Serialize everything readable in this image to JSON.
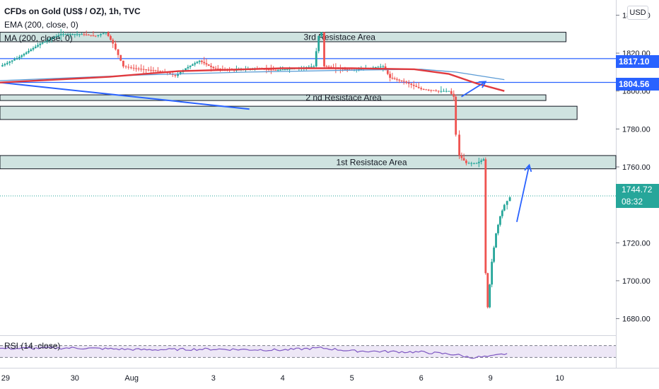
{
  "header": {
    "title": "CFDs on Gold (US$ / OZ), 1h, TVC",
    "ema_label": "EMA (200, close, 0)",
    "ma_label": "MA (200, close, 0)",
    "currency": "USD"
  },
  "rsi": {
    "label": "RSI (14, close)",
    "upper": 70,
    "lower": 30
  },
  "price_tags": [
    {
      "value": "1817.10",
      "color": "#2962ff"
    },
    {
      "value": "1804.56",
      "color": "#2962ff"
    }
  ],
  "current": {
    "price": "1744.72",
    "countdown": "08:32",
    "color": "#26a69a"
  },
  "colors": {
    "up": "#26a69a",
    "down": "#ef5350",
    "ema": "#e0393e",
    "ma": "#5b9bd5",
    "zone_fill": "#cfe3e0",
    "trend": "#2962ff",
    "rsi": "#7e57c2"
  },
  "chart_data": {
    "type": "candlestick",
    "ylim": [
      1672,
      1848
    ],
    "y_ticks": [
      1680,
      1700,
      1720,
      1740,
      1760,
      1780,
      1800,
      1820,
      1840
    ],
    "x_ticks": [
      {
        "label": "29",
        "x": -1
      },
      {
        "label": "30",
        "x": 0
      },
      {
        "label": "Aug",
        "x": 0.82
      },
      {
        "label": "3",
        "x": 2
      },
      {
        "label": "4",
        "x": 3
      },
      {
        "label": "5",
        "x": 4
      },
      {
        "label": "6",
        "x": 5
      },
      {
        "label": "9",
        "x": 6
      },
      {
        "label": "10",
        "x": 7
      }
    ],
    "x_range": [
      -1.08,
      7.81
    ],
    "zones": [
      {
        "label": "3rd Resistace Area",
        "x0": -1.08,
        "x1": 7.09,
        "y0": 1826,
        "y1": 1831
      },
      {
        "label": "2 nd Resistace Area",
        "x0": -1.08,
        "x1": 6.8,
        "y0": 1798,
        "y1": 1795
      },
      {
        "label": "",
        "x0": -1.08,
        "x1": 7.25,
        "y0": 1792,
        "y1": 1785
      },
      {
        "label": "1st Resistace Area",
        "x0": -1.08,
        "x1": 7.81,
        "y0": 1766,
        "y1": 1759
      }
    ],
    "horizontal_lines": [
      {
        "y": 1817.1
      },
      {
        "y": 1804.56
      }
    ],
    "arrows": [
      {
        "from": [
          5.58,
          1797
        ],
        "to": [
          5.93,
          1805
        ]
      },
      {
        "from": [
          6.38,
          1731
        ],
        "to": [
          6.56,
          1761
        ]
      }
    ],
    "trendline": {
      "from": [
        -1.08,
        1804.5
      ],
      "to": [
        2.52,
        1790.5
      ]
    },
    "ema": [
      [
        -1.08,
        1804.5
      ],
      [
        0.5,
        1807.5
      ],
      [
        1.5,
        1810.5
      ],
      [
        3,
        1812
      ],
      [
        4,
        1812
      ],
      [
        4.9,
        1811.5
      ],
      [
        5.4,
        1809
      ],
      [
        5.8,
        1804
      ],
      [
        6.2,
        1800
      ]
    ],
    "ma": [
      [
        -1.08,
        1805.5
      ],
      [
        1,
        1808.5
      ],
      [
        2.5,
        1810
      ],
      [
        4,
        1811
      ],
      [
        5,
        1811.5
      ],
      [
        5.5,
        1810
      ],
      [
        6.2,
        1806
      ]
    ],
    "candles_path": [
      [
        -1.08,
        1813
      ],
      [
        -0.8,
        1818
      ],
      [
        -0.5,
        1825
      ],
      [
        -0.2,
        1830
      ],
      [
        0.1,
        1830
      ],
      [
        0.3,
        1829
      ],
      [
        0.45,
        1831
      ],
      [
        0.55,
        1825
      ],
      [
        0.7,
        1813
      ],
      [
        0.85,
        1812
      ],
      [
        1.1,
        1811
      ],
      [
        1.3,
        1810
      ],
      [
        1.45,
        1808
      ],
      [
        1.6,
        1812
      ],
      [
        1.8,
        1816
      ],
      [
        2,
        1812
      ],
      [
        2.3,
        1811
      ],
      [
        2.6,
        1812
      ],
      [
        2.9,
        1811
      ],
      [
        3.2,
        1812
      ],
      [
        3.45,
        1813
      ],
      [
        3.52,
        1829
      ],
      [
        3.56,
        1831
      ],
      [
        3.6,
        1813
      ],
      [
        3.8,
        1812
      ],
      [
        4.0,
        1811
      ],
      [
        4.2,
        1812
      ],
      [
        4.45,
        1813
      ],
      [
        4.55,
        1807
      ],
      [
        4.75,
        1805
      ],
      [
        5.0,
        1801
      ],
      [
        5.25,
        1800
      ],
      [
        5.4,
        1800
      ],
      [
        5.47,
        1797
      ],
      [
        5.5,
        1777
      ],
      [
        5.55,
        1766
      ],
      [
        5.65,
        1762
      ],
      [
        5.8,
        1762
      ],
      [
        5.9,
        1764
      ],
      [
        5.93,
        1704
      ],
      [
        5.96,
        1686
      ],
      [
        6.02,
        1710
      ],
      [
        6.08,
        1725
      ],
      [
        6.14,
        1734
      ],
      [
        6.2,
        1740
      ],
      [
        6.28,
        1744
      ]
    ],
    "rsi_path": [
      [
        -1.08,
        60
      ],
      [
        0,
        62
      ],
      [
        1,
        56
      ],
      [
        2,
        58
      ],
      [
        3,
        55
      ],
      [
        3.55,
        62
      ],
      [
        4,
        52
      ],
      [
        5,
        48
      ],
      [
        5.5,
        40
      ],
      [
        5.7,
        30
      ],
      [
        6,
        33
      ],
      [
        6.28,
        45
      ]
    ]
  }
}
